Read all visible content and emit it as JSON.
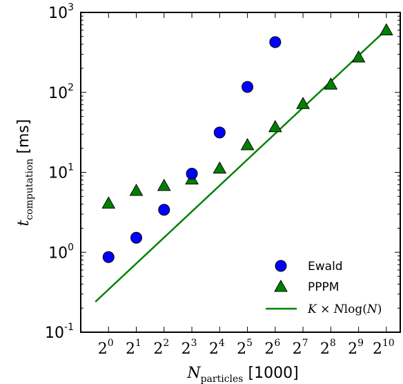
{
  "chart_data": {
    "type": "scatter",
    "title": "",
    "x_scale": "log2",
    "y_scale": "log10",
    "x_ticks": [
      {
        "base": "2",
        "exp": "0"
      },
      {
        "base": "2",
        "exp": "1"
      },
      {
        "base": "2",
        "exp": "2"
      },
      {
        "base": "2",
        "exp": "3"
      },
      {
        "base": "2",
        "exp": "4"
      },
      {
        "base": "2",
        "exp": "5"
      },
      {
        "base": "2",
        "exp": "6"
      },
      {
        "base": "2",
        "exp": "7"
      },
      {
        "base": "2",
        "exp": "8"
      },
      {
        "base": "2",
        "exp": "9"
      },
      {
        "base": "2",
        "exp": "10"
      }
    ],
    "y_ticks": [
      {
        "base": "10",
        "exp": "-1"
      },
      {
        "base": "10",
        "exp": "0"
      },
      {
        "base": "10",
        "exp": "1"
      },
      {
        "base": "10",
        "exp": "2"
      },
      {
        "base": "10",
        "exp": "3"
      }
    ],
    "xlim": [
      0.5,
      1448
    ],
    "ylim": [
      0.1,
      1000
    ],
    "xlabel": {
      "main": "N",
      "sub": "particles",
      "unit": " [1000]"
    },
    "ylabel": {
      "main": "t",
      "sub": "computation",
      "unit": " [ms]"
    },
    "grid": false,
    "legend_position": "bottom-right",
    "series": [
      {
        "name": "Ewald",
        "marker": "circle",
        "color": "#0000ff",
        "x": [
          1,
          2,
          4,
          8,
          16,
          32,
          64
        ],
        "y": [
          0.87,
          1.52,
          3.4,
          9.6,
          31.5,
          117,
          425
        ]
      },
      {
        "name": "PPPM",
        "marker": "triangle",
        "color": "#008000",
        "x": [
          1,
          2,
          4,
          8,
          16,
          32,
          64,
          128,
          256,
          512,
          1024
        ],
        "y": [
          4.1,
          5.9,
          6.8,
          8.2,
          11.2,
          22,
          37,
          72,
          126,
          275,
          600
        ]
      },
      {
        "name": "K × Nlog(N)",
        "legend_parts": [
          "K",
          " × ",
          "N",
          "log(",
          "N",
          ")"
        ],
        "marker": "line",
        "color": "#008000",
        "x": [
          0.72,
          1024
        ],
        "y": [
          0.24,
          610
        ]
      }
    ]
  }
}
